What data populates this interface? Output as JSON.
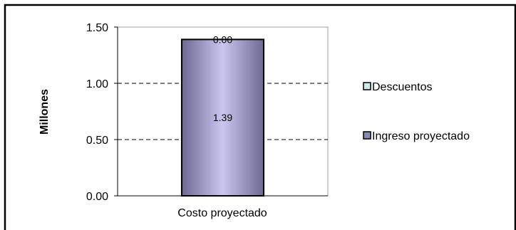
{
  "chart_data": {
    "type": "bar",
    "stacked": true,
    "categories": [
      "Costo proyectado"
    ],
    "series": [
      {
        "name": "Ingreso proyectado",
        "values": [
          1.39
        ],
        "color": "#8a8ab8"
      },
      {
        "name": "Descuentos",
        "values": [
          0.0
        ],
        "color": "#ccecec"
      }
    ],
    "data_labels": [
      "1.39",
      "0.00"
    ],
    "ylabel": "Millones",
    "ylim": [
      0,
      1.5
    ],
    "yticks": [
      "0.00",
      "0.50",
      "1.00",
      "1.50"
    ],
    "grid": "dashed-horizontal",
    "legend": "right",
    "colors": {
      "border": "#000000",
      "plot_border": "#808080",
      "grid": "#000000",
      "bar_dark": "#6e6e99",
      "bar_light": "#c4c4ec"
    }
  }
}
